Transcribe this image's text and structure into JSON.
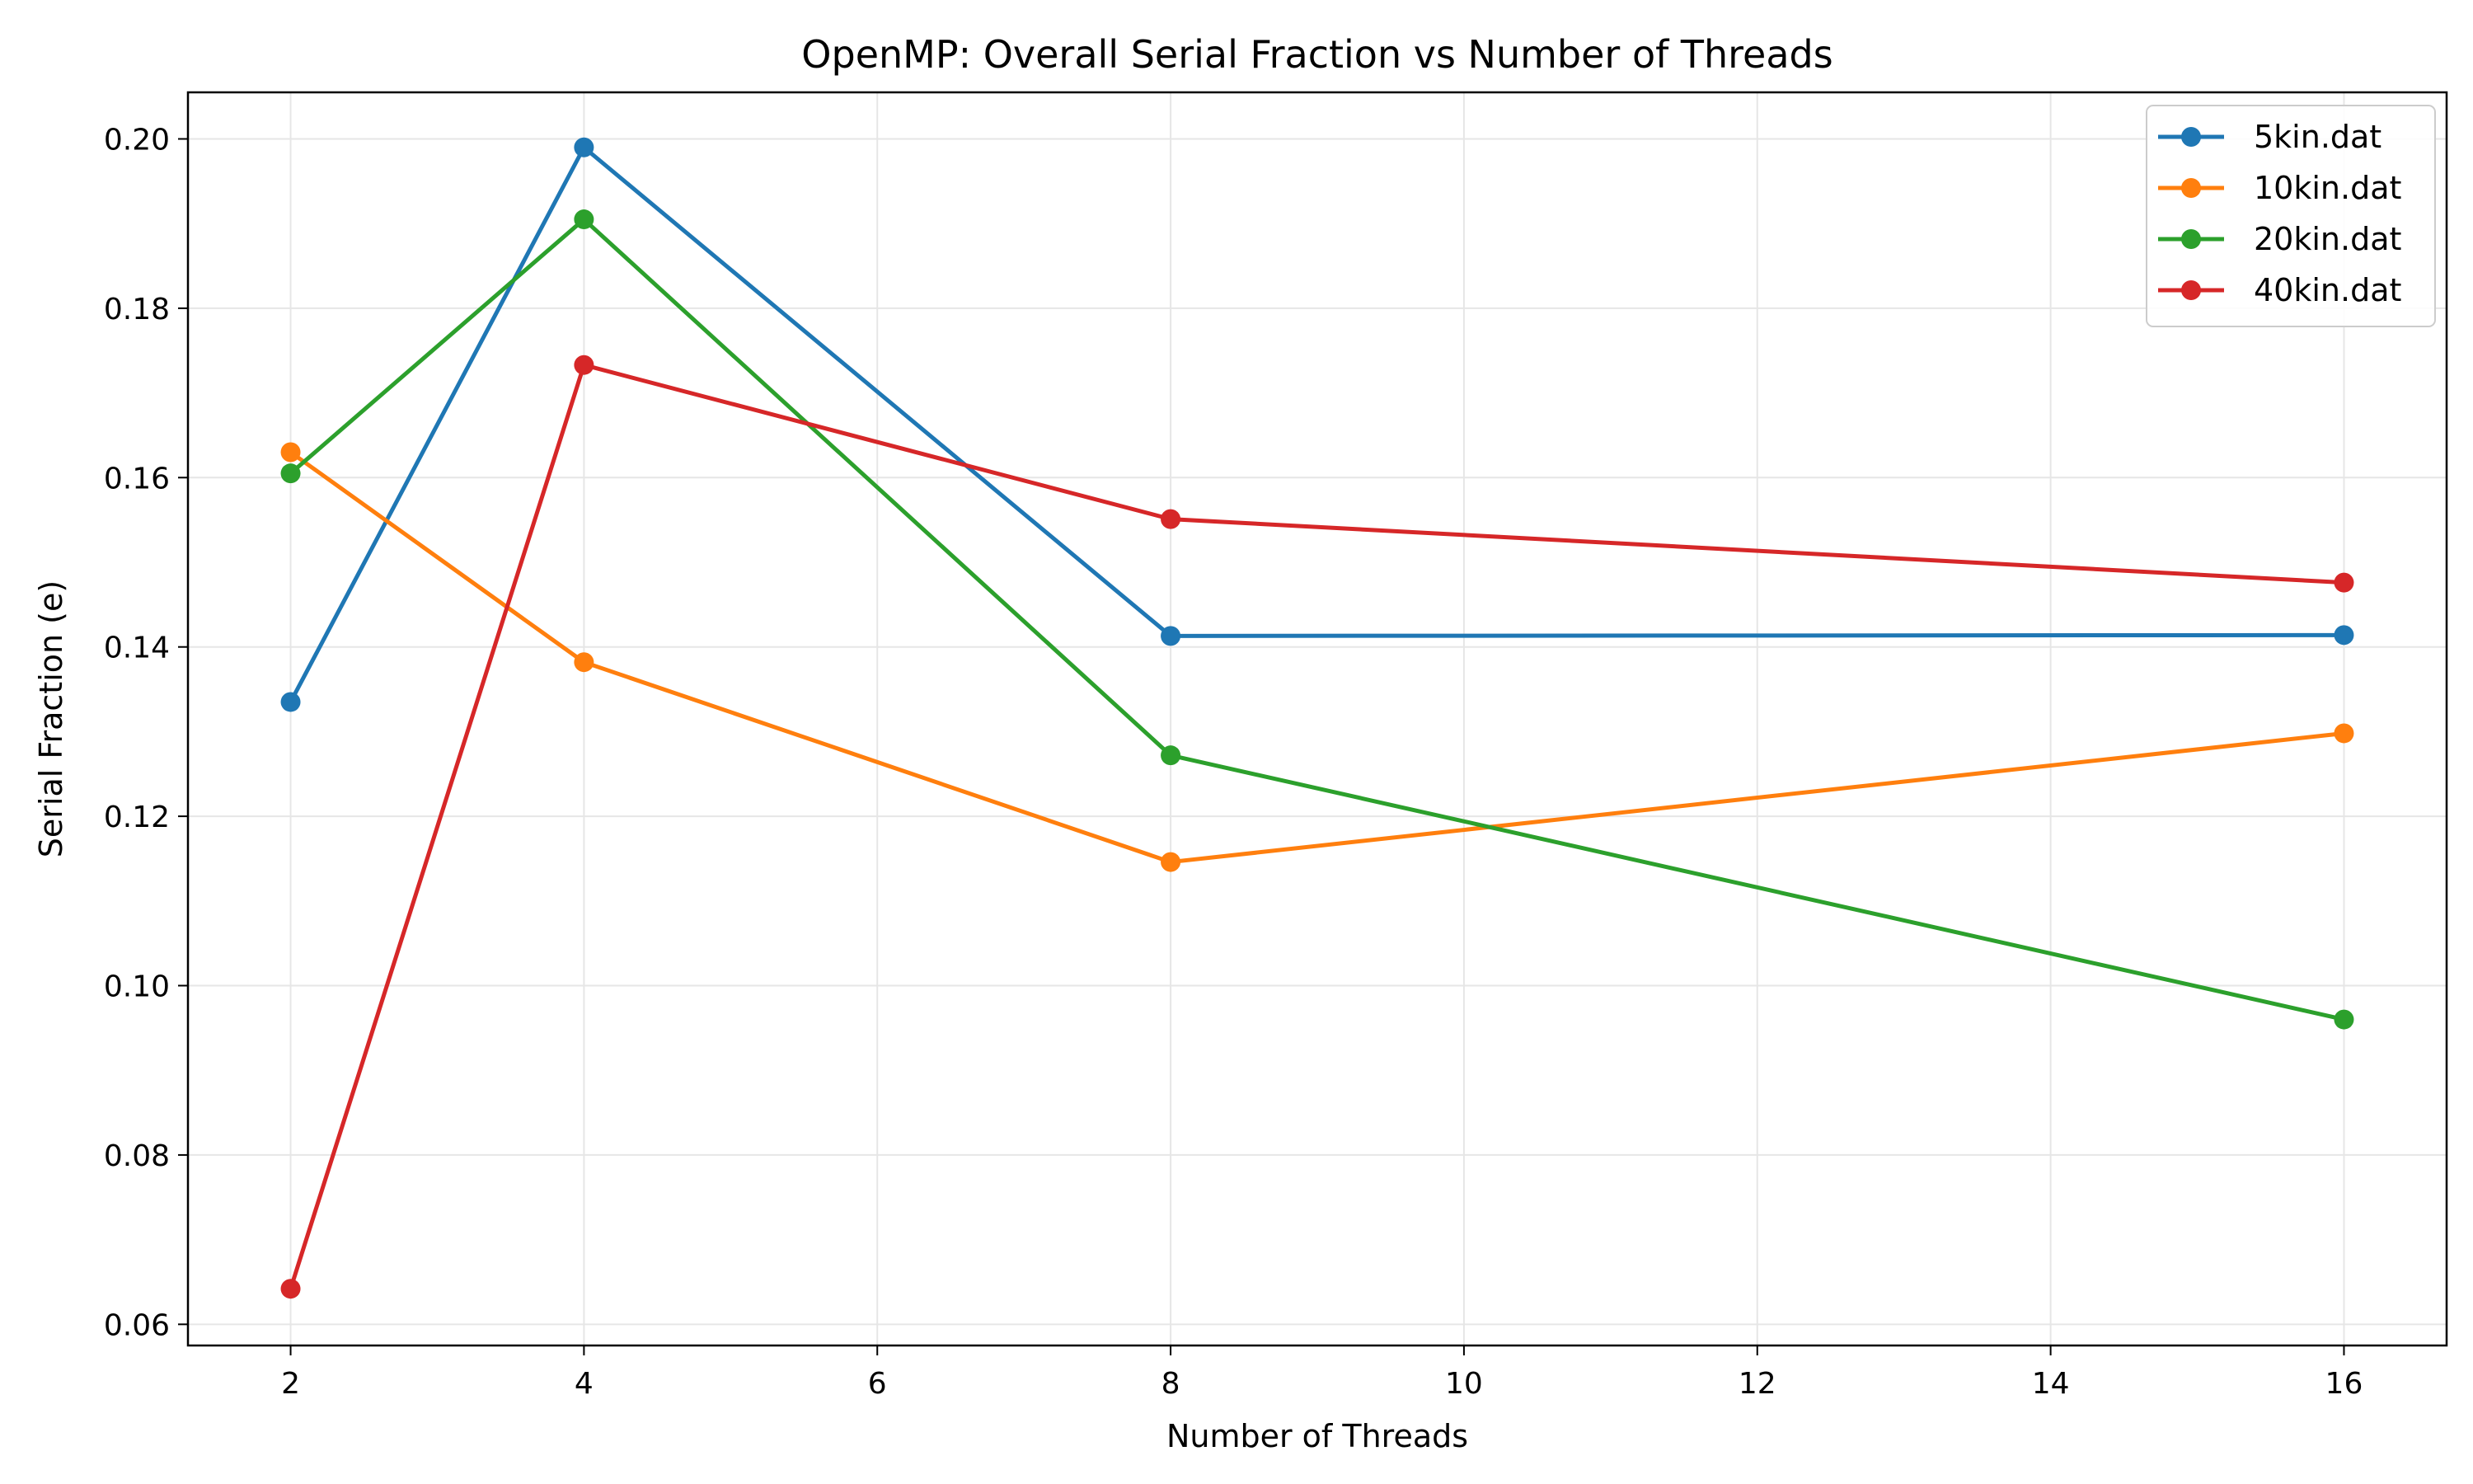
{
  "chart_data": {
    "type": "line",
    "title": "OpenMP: Overall Serial Fraction vs Number of Threads",
    "xlabel": "Number of Threads",
    "ylabel": "Serial Fraction (e)",
    "xlim": [
      1.3,
      16.7
    ],
    "ylim": [
      0.0575,
      0.2055
    ],
    "xticks": [
      2,
      4,
      6,
      8,
      10,
      12,
      14,
      16
    ],
    "yticks": [
      0.06,
      0.08,
      0.1,
      0.12,
      0.14,
      0.16,
      0.18,
      0.2
    ],
    "ytick_labels": [
      "0.06",
      "0.08",
      "0.10",
      "0.12",
      "0.14",
      "0.16",
      "0.18",
      "0.20"
    ],
    "grid": true,
    "legend_position": "top-right",
    "x": [
      2,
      4,
      8,
      16
    ],
    "series": [
      {
        "name": "5kin.dat",
        "color": "#1f77b4",
        "values": [
          0.1335,
          0.199,
          0.1413,
          0.1414
        ]
      },
      {
        "name": "10kin.dat",
        "color": "#ff7f0e",
        "values": [
          0.163,
          0.1382,
          0.1146,
          0.1298
        ]
      },
      {
        "name": "20kin.dat",
        "color": "#2ca02c",
        "values": [
          0.1605,
          0.1905,
          0.1272,
          0.096
        ]
      },
      {
        "name": "40kin.dat",
        "color": "#d62728",
        "values": [
          0.0642,
          0.1733,
          0.1551,
          0.1476
        ]
      }
    ]
  }
}
